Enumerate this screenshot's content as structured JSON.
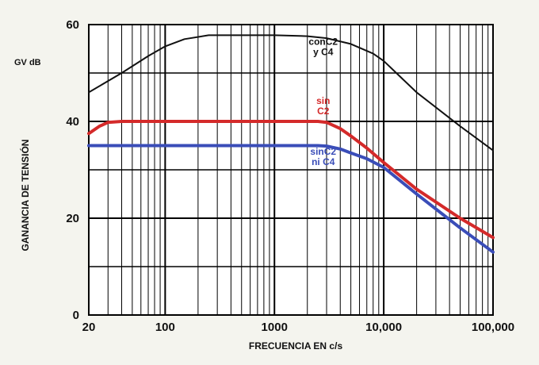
{
  "chart_data": {
    "type": "line",
    "xscale": "log",
    "xlim": [
      20,
      100000
    ],
    "ylim": [
      0,
      60
    ],
    "xlabel": "FRECUENCIA EN c/s",
    "ylabel": "GANANCIA DE TENSIÓN",
    "yunit": "GV dB",
    "x_ticks": [
      {
        "value": 20,
        "label": "20"
      },
      {
        "value": 100,
        "label": "100"
      },
      {
        "value": 1000,
        "label": "1000"
      },
      {
        "value": 10000,
        "label": "10,000"
      },
      {
        "value": 100000,
        "label": "100,000"
      }
    ],
    "y_ticks": [
      {
        "value": 0,
        "label": "0"
      },
      {
        "value": 20,
        "label": "20"
      },
      {
        "value": 40,
        "label": "40"
      },
      {
        "value": 60,
        "label": "60"
      }
    ],
    "grid": true,
    "series": [
      {
        "name": "conC2 y C4",
        "label_lines": [
          "conC2",
          "y C4"
        ],
        "color": "#111111",
        "x": [
          20,
          40,
          70,
          100,
          150,
          250,
          500,
          1000,
          2000,
          3000,
          5000,
          8000,
          10000,
          20000,
          50000,
          100000
        ],
        "y": [
          46,
          50,
          53.5,
          55.5,
          57,
          57.8,
          57.8,
          57.8,
          57.6,
          57.2,
          56,
          54,
          52.5,
          46,
          39,
          34
        ]
      },
      {
        "name": "sin C2",
        "label_lines": [
          "sin",
          "C2"
        ],
        "color": "#d42a2a",
        "x": [
          20,
          25,
          30,
          40,
          100,
          1000,
          2500,
          3000,
          4000,
          5000,
          7000,
          10000,
          20000,
          50000,
          100000
        ],
        "y": [
          37.5,
          39,
          39.8,
          40,
          40,
          40,
          40,
          39.8,
          38.5,
          37,
          34.5,
          31.5,
          26,
          20,
          16
        ]
      },
      {
        "name": "sin C2 ni C4",
        "label_lines": [
          "sinC2",
          "ni C4"
        ],
        "color": "#3a4db8",
        "x": [
          20,
          100,
          1000,
          2500,
          3000,
          4000,
          5000,
          7000,
          10000,
          20000,
          50000,
          100000
        ],
        "y": [
          35,
          35,
          35,
          35,
          34.9,
          34.3,
          33.5,
          32.3,
          30.5,
          25,
          18,
          13
        ]
      }
    ]
  }
}
